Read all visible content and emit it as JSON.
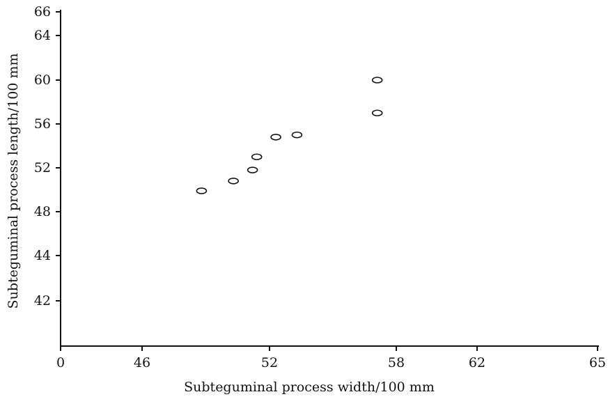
{
  "chart_data": {
    "type": "scatter",
    "title": "",
    "xlabel": "Subteguminal process width/100 mm",
    "ylabel": "Subteguminal process length/100 mm",
    "x_ticks": [
      "0",
      "46",
      "52",
      "58",
      "62",
      "65"
    ],
    "y_ticks": [
      "42",
      "44",
      "48",
      "52",
      "56",
      "60",
      "64",
      "66"
    ],
    "grid": false,
    "points": [
      {
        "x": 48.8,
        "y": 49.9
      },
      {
        "x": 50.3,
        "y": 50.8
      },
      {
        "x": 51.2,
        "y": 51.8
      },
      {
        "x": 51.4,
        "y": 53.0
      },
      {
        "x": 52.3,
        "y": 54.8
      },
      {
        "x": 53.3,
        "y": 55.0
      },
      {
        "x": 57.1,
        "y": 60.0
      },
      {
        "x": 57.1,
        "y": 57.0
      }
    ]
  }
}
